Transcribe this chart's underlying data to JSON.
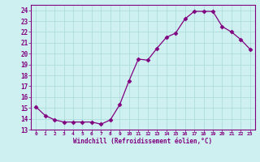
{
  "x": [
    0,
    1,
    2,
    3,
    4,
    5,
    6,
    7,
    8,
    9,
    10,
    11,
    12,
    13,
    14,
    15,
    16,
    17,
    18,
    19,
    20,
    21,
    22,
    23
  ],
  "y": [
    15.1,
    14.3,
    13.9,
    13.7,
    13.7,
    13.7,
    13.7,
    13.5,
    13.9,
    15.3,
    17.5,
    19.5,
    19.4,
    20.5,
    21.5,
    21.9,
    23.2,
    23.9,
    23.9,
    23.9,
    22.5,
    22.0,
    21.3,
    20.4
  ],
  "line_color": "#800080",
  "marker": "D",
  "marker_size": 2.5,
  "bg_color": "#cff0f0",
  "grid_color": "#a8d8d8",
  "xlabel": "Windchill (Refroidissement éolien,°C)",
  "ylim": [
    13,
    24.5
  ],
  "xlim": [
    -0.5,
    23.5
  ],
  "yticks": [
    13,
    14,
    15,
    16,
    17,
    18,
    19,
    20,
    21,
    22,
    23,
    24
  ],
  "xticks": [
    0,
    1,
    2,
    3,
    4,
    5,
    6,
    7,
    8,
    9,
    10,
    11,
    12,
    13,
    14,
    15,
    16,
    17,
    18,
    19,
    20,
    21,
    22,
    23
  ],
  "axis_color": "#800080",
  "tick_color": "#800080",
  "label_color": "#800080",
  "xtick_fontsize": 4.5,
  "ytick_fontsize": 5.5,
  "xlabel_fontsize": 5.5,
  "linewidth": 0.9
}
